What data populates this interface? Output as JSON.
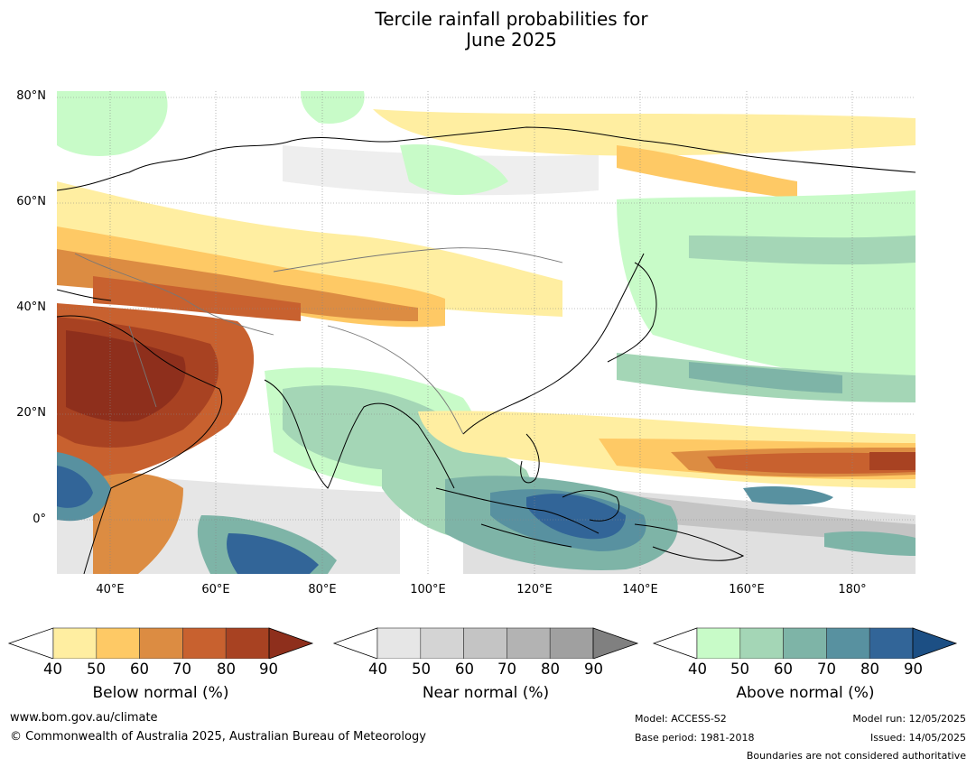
{
  "title_line1": "Tercile rainfall probabilities for",
  "title_line2": "June 2025",
  "lat_ticks": [
    "80°N",
    "60°N",
    "40°N",
    "20°N",
    "0°"
  ],
  "lon_ticks": [
    "40°E",
    "60°E",
    "80°E",
    "100°E",
    "120°E",
    "140°E",
    "160°E",
    "180°"
  ],
  "colorbars": [
    {
      "title": "Below normal (%)",
      "ticks": [
        "40",
        "50",
        "60",
        "70",
        "80",
        "90"
      ],
      "colors": [
        "#ffeea1",
        "#fec965",
        "#dc8c42",
        "#c8612f",
        "#a84222"
      ],
      "extend_color": "#8e2f1c"
    },
    {
      "title": "Near normal (%)",
      "ticks": [
        "40",
        "50",
        "60",
        "70",
        "80",
        "90"
      ],
      "colors": [
        "#e6e6e6",
        "#d4d4d4",
        "#c4c4c4",
        "#b3b3b3",
        "#a0a0a0"
      ],
      "extend_color": "#808080"
    },
    {
      "title": "Above normal (%)",
      "ticks": [
        "40",
        "50",
        "60",
        "70",
        "80",
        "90"
      ],
      "colors": [
        "#c8fbc8",
        "#a4d6b6",
        "#7eb4a7",
        "#5891a0",
        "#326598"
      ],
      "extend_color": "#1c4f84"
    }
  ],
  "footer": {
    "website": "www.bom.gov.au/climate",
    "copyright": "© Commonwealth of Australia 2025, Australian Bureau of Meteorology",
    "model": "Model: ACCESS-S2",
    "base_period": "Base period: 1981-2018",
    "model_run": "Model run: 12/05/2025",
    "issued": "Issued: 14/05/2025",
    "disclaimer": "Boundaries are not considered authoritative"
  }
}
